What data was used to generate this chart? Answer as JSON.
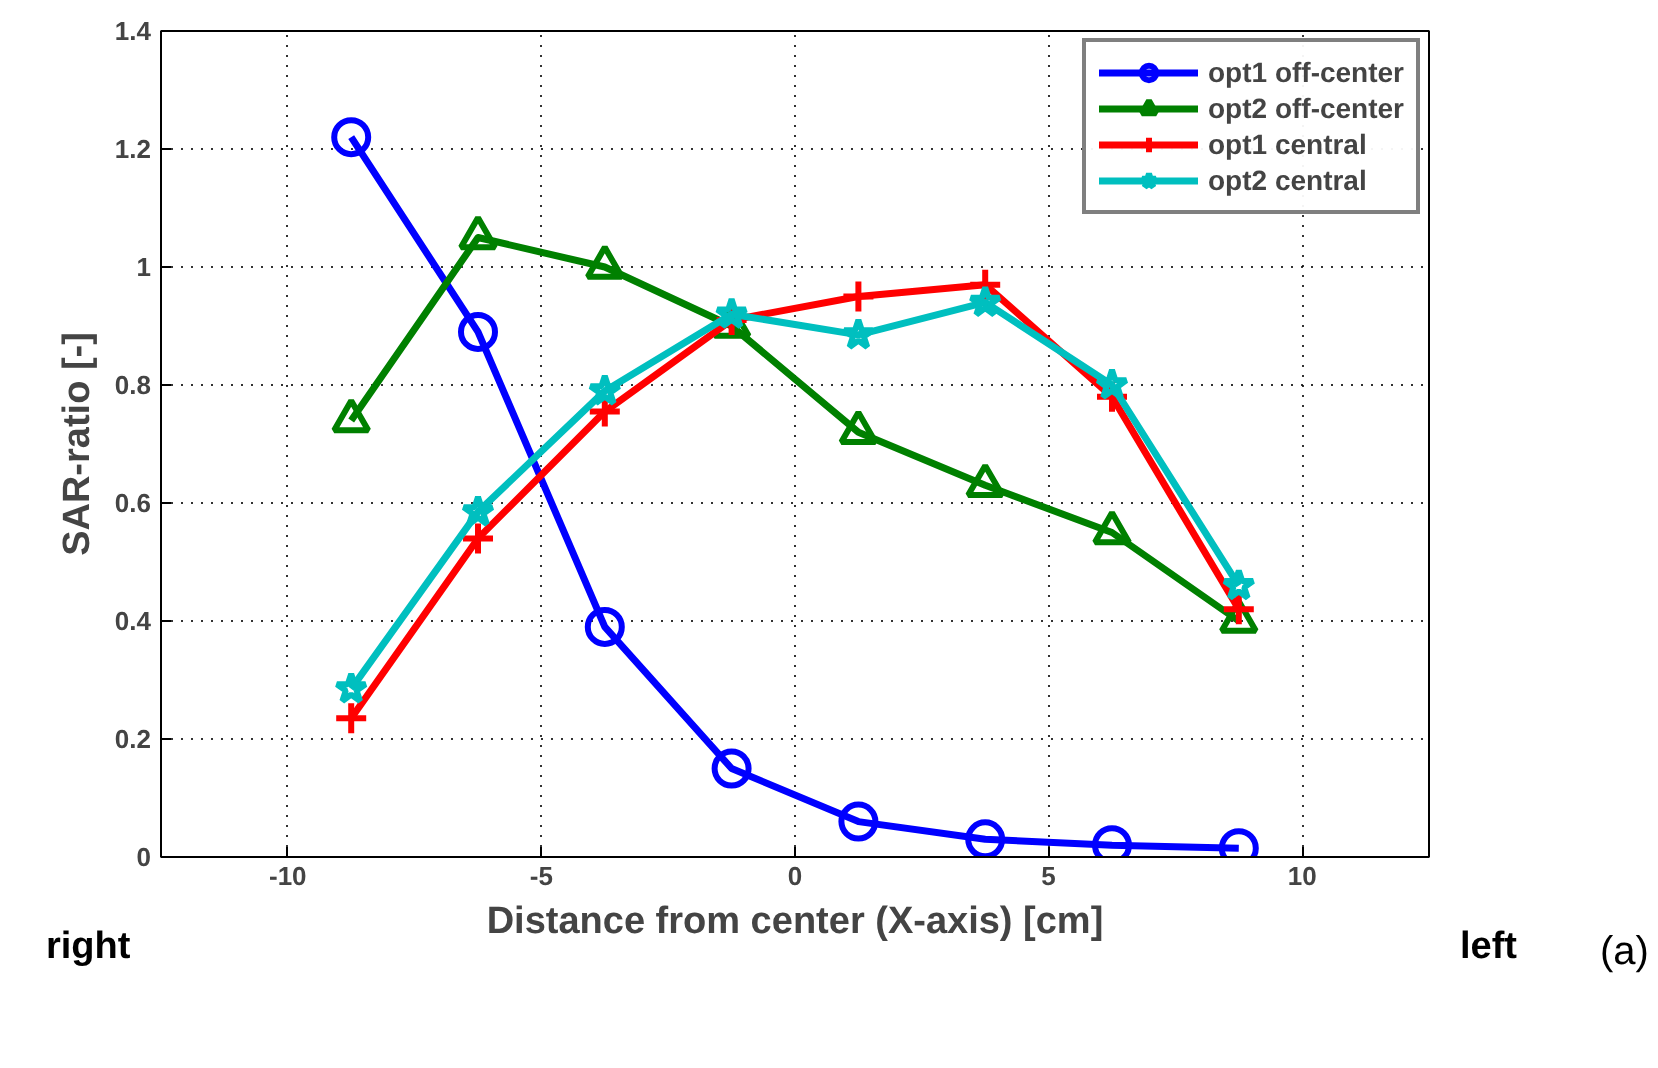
{
  "chart_data": {
    "type": "line",
    "xlabel": "Distance from center (X-axis) [cm]",
    "ylabel": "SAR-ratio [-]",
    "x": [
      -8.75,
      -6.25,
      -3.75,
      -1.25,
      1.25,
      3.75,
      6.25,
      8.75
    ],
    "xlim": [
      -12.5,
      12.5
    ],
    "xticks": [
      -10,
      -5,
      0,
      5,
      10
    ],
    "ylim": [
      0,
      1.4
    ],
    "yticks": [
      0,
      0.2,
      0.4,
      0.6,
      0.8,
      1,
      1.2,
      1.4
    ],
    "grid": true,
    "legend": "top right",
    "line_style": "solid",
    "annotations": [
      "right",
      "left",
      "(a)"
    ],
    "series": [
      {
        "name": "opt1 off-center",
        "color": "#0000ff",
        "marker": "circle",
        "values": [
          1.22,
          0.89,
          0.39,
          0.15,
          0.06,
          0.03,
          0.02,
          0.015
        ]
      },
      {
        "name": "opt2 off-center",
        "color": "#008000",
        "marker": "triangle",
        "values": [
          0.74,
          1.05,
          1.0,
          0.9,
          0.72,
          0.63,
          0.55,
          0.4
        ]
      },
      {
        "name": "opt1 central",
        "color": "#ff0000",
        "marker": "cross",
        "values": [
          0.235,
          0.54,
          0.755,
          0.91,
          0.95,
          0.97,
          0.78,
          0.42
        ]
      },
      {
        "name": "opt2 central",
        "color": "#00bfbf",
        "marker": "star",
        "values": [
          0.285,
          0.585,
          0.79,
          0.92,
          0.885,
          0.94,
          0.8,
          0.46
        ]
      }
    ]
  }
}
